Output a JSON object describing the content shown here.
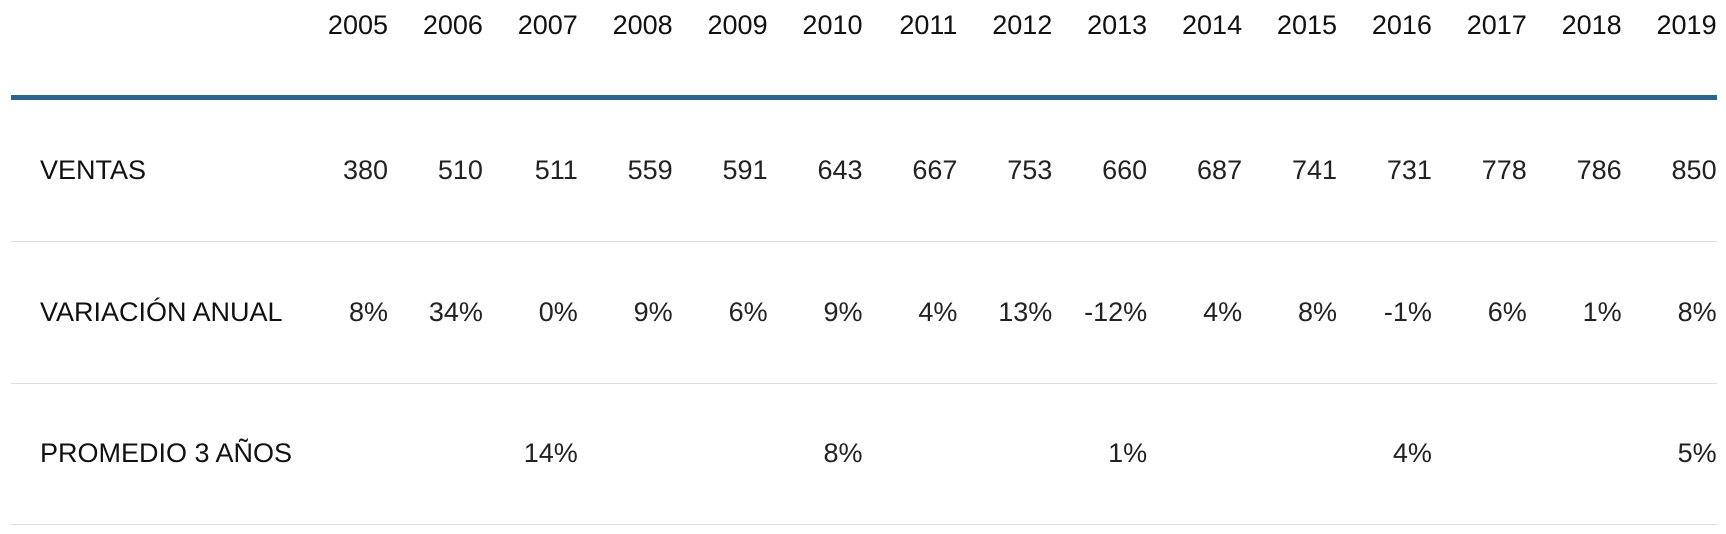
{
  "table": {
    "header": [
      "2005",
      "2006",
      "2007",
      "2008",
      "2009",
      "2010",
      "2011",
      "2012",
      "2013",
      "2014",
      "2015",
      "2016",
      "2017",
      "2018",
      "2019"
    ],
    "rows": [
      {
        "label": "VENTAS",
        "cells": [
          380,
          510,
          511,
          559,
          591,
          643,
          667,
          753,
          660,
          687,
          741,
          731,
          778,
          786,
          850
        ]
      },
      {
        "label": "VARIACIÓN ANUAL",
        "cells": [
          "8%",
          "34%",
          "0%",
          "9%",
          "6%",
          "9%",
          "4%",
          "13%",
          "-12%",
          "4%",
          "8%",
          "-1%",
          "6%",
          "1%",
          "8%"
        ]
      },
      {
        "label": "PROMEDIO 3 AÑOS",
        "cells": [
          null,
          null,
          "14%",
          null,
          null,
          "8%",
          null,
          null,
          "1%",
          null,
          null,
          "4%",
          null,
          null,
          "5%"
        ]
      }
    ]
  }
}
